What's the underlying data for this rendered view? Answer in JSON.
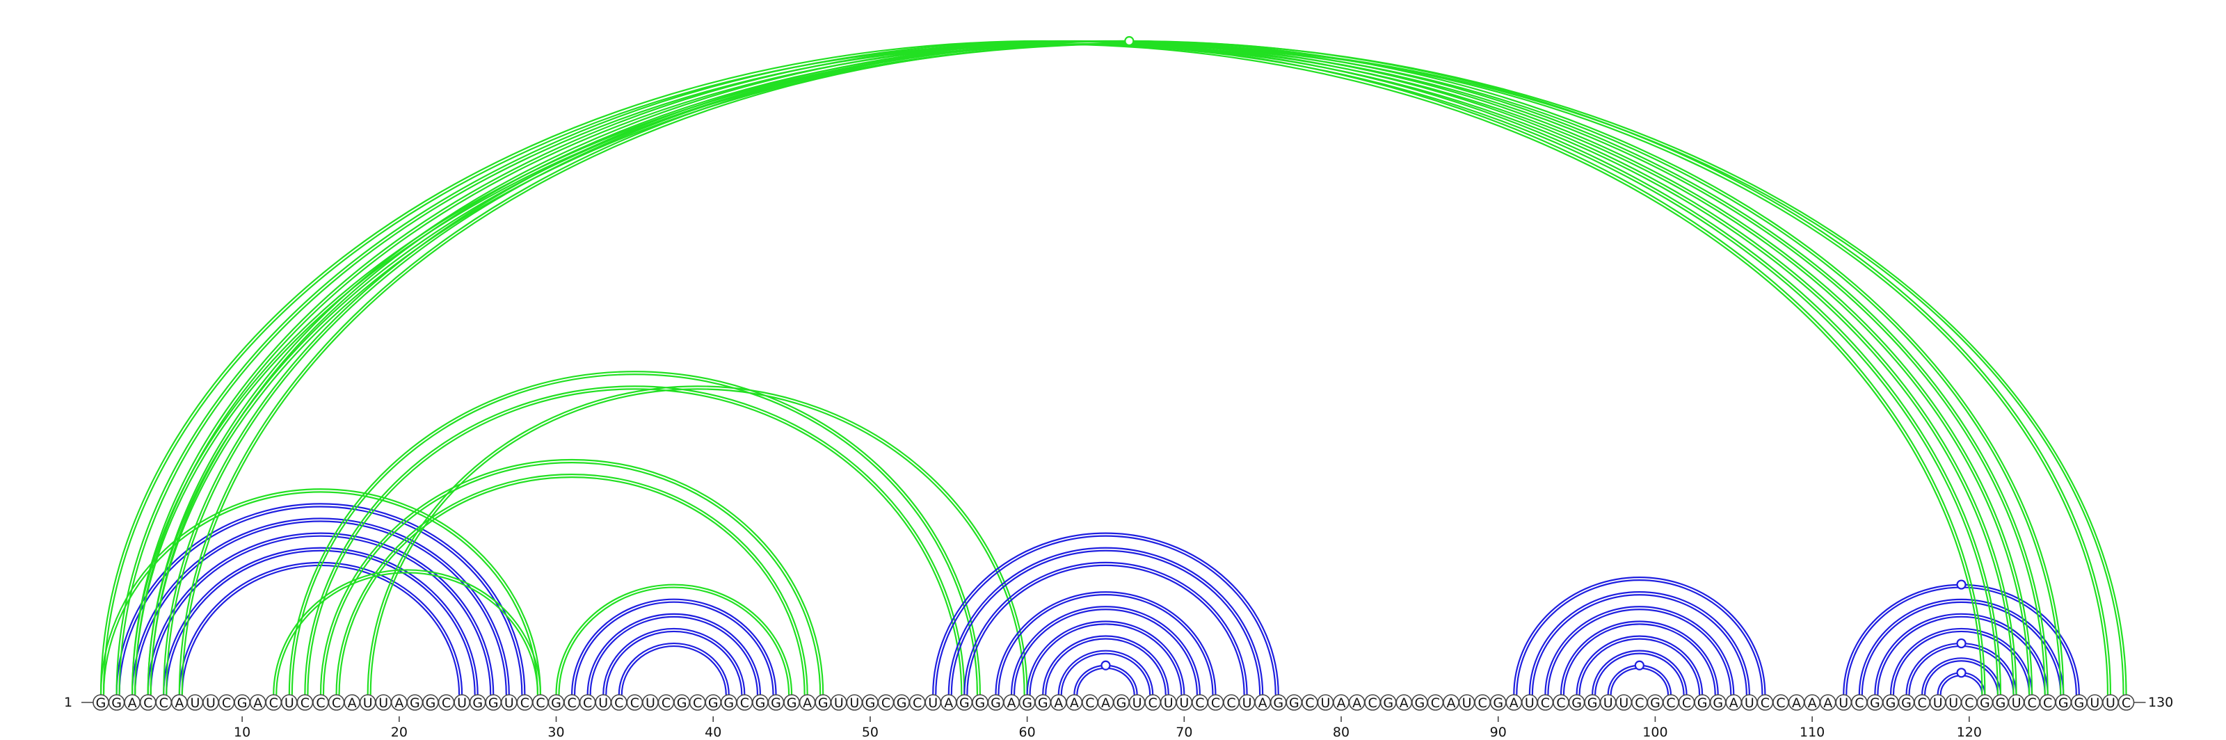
{
  "sequence": "GGACCAUUCGACUCCCAUUAGGCUGGUCCGCCUCCUCGCGGCGGGAGUUGCGCUAGGGAGGAACAGUCUUCCCUAGGCUAACGAGCAUCGAUCCGGUUCGCCGGAUCCAAAUCGGGCUUCGGUCCGGUUC",
  "start_label": "1",
  "end_label": "130",
  "ticks": [
    {
      "pos": 10,
      "label": "10"
    },
    {
      "pos": 20,
      "label": "20"
    },
    {
      "pos": 30,
      "label": "30"
    },
    {
      "pos": 40,
      "label": "40"
    },
    {
      "pos": 50,
      "label": "50"
    },
    {
      "pos": 60,
      "label": "60"
    },
    {
      "pos": 70,
      "label": "70"
    },
    {
      "pos": 80,
      "label": "80"
    },
    {
      "pos": 90,
      "label": "90"
    },
    {
      "pos": 100,
      "label": "100"
    },
    {
      "pos": 110,
      "label": "110"
    },
    {
      "pos": 120,
      "label": "120"
    }
  ],
  "colors": {
    "green": "#22e022",
    "blue": "#1f1fe0"
  },
  "arcs": [
    {
      "i": 2,
      "j": 28,
      "color": "blue"
    },
    {
      "i": 3,
      "j": 27,
      "color": "blue"
    },
    {
      "i": 4,
      "j": 26,
      "color": "blue"
    },
    {
      "i": 5,
      "j": 25,
      "color": "blue"
    },
    {
      "i": 6,
      "j": 24,
      "color": "blue"
    },
    {
      "i": 1,
      "j": 29,
      "color": "green"
    },
    {
      "i": 12,
      "j": 29,
      "color": "green"
    },
    {
      "i": 30,
      "j": 45,
      "color": "green"
    },
    {
      "i": 31,
      "j": 44,
      "color": "blue"
    },
    {
      "i": 32,
      "j": 43,
      "color": "blue"
    },
    {
      "i": 33,
      "j": 42,
      "color": "blue"
    },
    {
      "i": 34,
      "j": 41,
      "color": "blue"
    },
    {
      "i": 15,
      "j": 47,
      "color": "green"
    },
    {
      "i": 16,
      "j": 46,
      "color": "green"
    },
    {
      "i": 13,
      "j": 57,
      "color": "green"
    },
    {
      "i": 14,
      "j": 56,
      "color": "green"
    },
    {
      "i": 18,
      "j": 60,
      "color": "green"
    },
    {
      "i": 54,
      "j": 76,
      "color": "blue"
    },
    {
      "i": 55,
      "j": 75,
      "color": "blue"
    },
    {
      "i": 56,
      "j": 74,
      "color": "blue"
    },
    {
      "i": 58,
      "j": 72,
      "color": "blue"
    },
    {
      "i": 59,
      "j": 71,
      "color": "blue"
    },
    {
      "i": 60,
      "j": 70,
      "color": "blue"
    },
    {
      "i": 61,
      "j": 69,
      "color": "blue"
    },
    {
      "i": 62,
      "j": 68,
      "color": "blue"
    },
    {
      "i": 63,
      "j": 67,
      "color": "blue"
    },
    {
      "i": 91,
      "j": 107,
      "color": "blue"
    },
    {
      "i": 92,
      "j": 106,
      "color": "blue"
    },
    {
      "i": 93,
      "j": 105,
      "color": "blue"
    },
    {
      "i": 94,
      "j": 104,
      "color": "blue"
    },
    {
      "i": 95,
      "j": 103,
      "color": "blue"
    },
    {
      "i": 96,
      "j": 102,
      "color": "blue"
    },
    {
      "i": 97,
      "j": 101,
      "color": "blue"
    },
    {
      "i": 112,
      "j": 127,
      "color": "blue"
    },
    {
      "i": 113,
      "j": 126,
      "color": "blue"
    },
    {
      "i": 114,
      "j": 125,
      "color": "blue"
    },
    {
      "i": 115,
      "j": 124,
      "color": "blue"
    },
    {
      "i": 116,
      "j": 123,
      "color": "blue"
    },
    {
      "i": 117,
      "j": 122,
      "color": "blue"
    },
    {
      "i": 118,
      "j": 121,
      "color": "blue"
    },
    {
      "i": 1,
      "j": 121,
      "color": "green"
    },
    {
      "i": 2,
      "j": 122,
      "color": "green"
    },
    {
      "i": 3,
      "j": 123,
      "color": "green"
    },
    {
      "i": 4,
      "j": 124,
      "color": "green"
    },
    {
      "i": 5,
      "j": 125,
      "color": "green"
    },
    {
      "i": 6,
      "j": 126,
      "color": "green"
    },
    {
      "i": 4,
      "j": 129,
      "color": "green"
    },
    {
      "i": 3,
      "j": 130,
      "color": "green"
    }
  ],
  "markers": [
    {
      "i": 3,
      "j": 130,
      "color": "green"
    },
    {
      "i": 63,
      "j": 67,
      "color": "blue"
    },
    {
      "i": 97,
      "j": 101,
      "color": "blue"
    },
    {
      "i": 112,
      "j": 127,
      "color": "blue"
    },
    {
      "i": 116,
      "j": 123,
      "color": "blue"
    },
    {
      "i": 118,
      "j": 121,
      "color": "blue"
    }
  ]
}
